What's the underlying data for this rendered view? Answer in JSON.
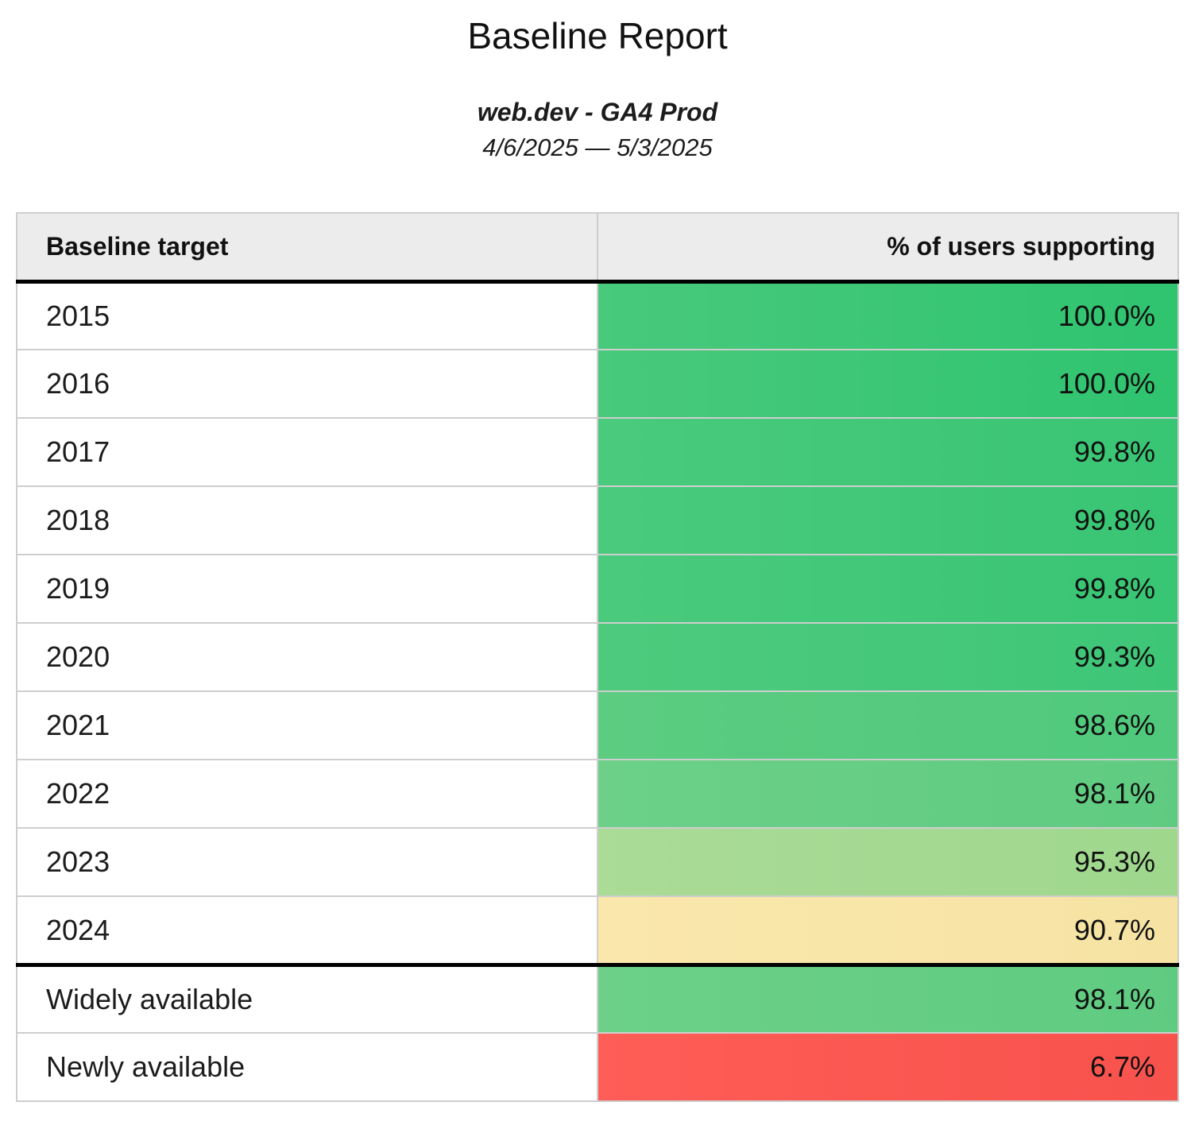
{
  "report": {
    "title": "Baseline Report",
    "subtitle": "web.dev - GA4 Prod",
    "date_range": "4/6/2025 — 5/3/2025"
  },
  "table": {
    "columns": [
      {
        "label": "Baseline target"
      },
      {
        "label": "% of users supporting"
      }
    ],
    "rows": [
      {
        "target": "2015",
        "value": "100.0%",
        "bg_left": "#48c97b",
        "bg_right": "#2fc46f",
        "section_end": false
      },
      {
        "target": "2016",
        "value": "100.0%",
        "bg_left": "#48c97b",
        "bg_right": "#2fc46f",
        "section_end": false
      },
      {
        "target": "2017",
        "value": "99.8%",
        "bg_left": "#4aca7c",
        "bg_right": "#38c574",
        "section_end": false
      },
      {
        "target": "2018",
        "value": "99.8%",
        "bg_left": "#4aca7c",
        "bg_right": "#38c574",
        "section_end": false
      },
      {
        "target": "2019",
        "value": "99.8%",
        "bg_left": "#4aca7c",
        "bg_right": "#38c574",
        "section_end": false
      },
      {
        "target": "2020",
        "value": "99.3%",
        "bg_left": "#4eca7d",
        "bg_right": "#3ec677",
        "section_end": false
      },
      {
        "target": "2021",
        "value": "98.6%",
        "bg_left": "#5ccc81",
        "bg_right": "#50c97c",
        "section_end": false
      },
      {
        "target": "2022",
        "value": "98.1%",
        "bg_left": "#6cd088",
        "bg_right": "#5fcb81",
        "section_end": false
      },
      {
        "target": "2023",
        "value": "95.3%",
        "bg_left": "#aadb97",
        "bg_right": "#9fd78d",
        "section_end": false
      },
      {
        "target": "2024",
        "value": "90.7%",
        "bg_left": "#fae7ab",
        "bg_right": "#f6e3a4",
        "section_end": true
      },
      {
        "target": "Widely available",
        "value": "98.1%",
        "bg_left": "#6cd088",
        "bg_right": "#5fcb81",
        "section_end": false
      },
      {
        "target": "Newly available",
        "value": "6.7%",
        "bg_left": "#ff5d57",
        "bg_right": "#f8524d",
        "section_end": false
      }
    ]
  },
  "style": {
    "header_bg": "#ececec",
    "grid_border": "#cecece",
    "section_rule": "#000000",
    "text": "#1c1c1c"
  },
  "chart_data": {
    "type": "table",
    "title": "Baseline Report",
    "subtitle": "web.dev - GA4 Prod",
    "date_range": "4/6/2025 — 5/3/2025",
    "columns": [
      "Baseline target",
      "% of users supporting"
    ],
    "rows": [
      [
        "2015",
        100.0
      ],
      [
        "2016",
        100.0
      ],
      [
        "2017",
        99.8
      ],
      [
        "2018",
        99.8
      ],
      [
        "2019",
        99.8
      ],
      [
        "2020",
        99.3
      ],
      [
        "2021",
        98.6
      ],
      [
        "2022",
        98.1
      ],
      [
        "2023",
        95.3
      ],
      [
        "2024",
        90.7
      ],
      [
        "Widely available",
        98.1
      ],
      [
        "Newly available",
        6.7
      ]
    ],
    "value_format": "percent_one_decimal",
    "color_scale": "green (high) → yellow (~90%) → red (low), applied to value cells",
    "layout_hints": "thick black rule below header row and below the 2024 row; thin gray grid lines; value column right-aligned"
  }
}
